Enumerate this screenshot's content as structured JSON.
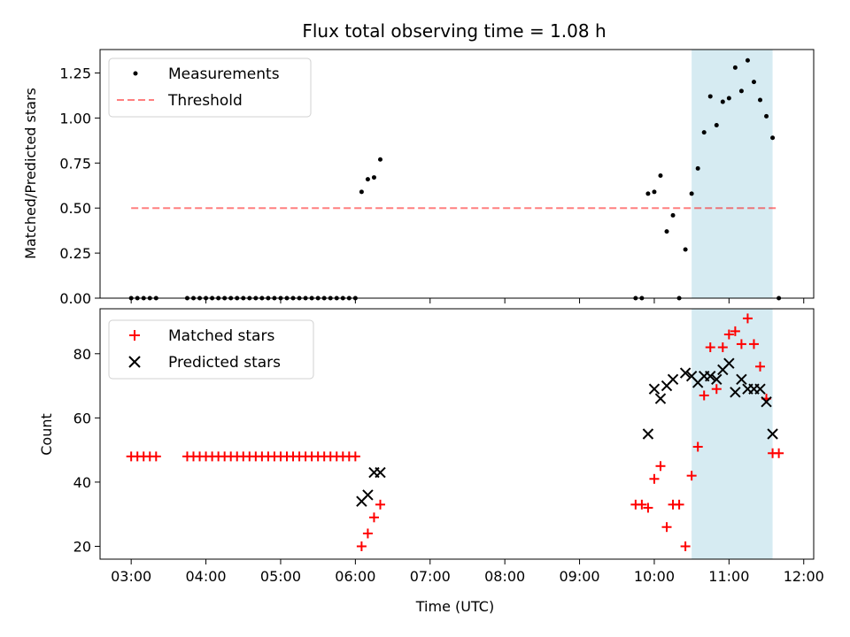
{
  "title": "Flux total observing time = 1.08 h",
  "colors": {
    "highlight": "#add8e6",
    "matched": "#ff0000",
    "predicted": "#000000",
    "threshold": "#ff0000",
    "measurements": "#000000"
  },
  "chart_data": [
    {
      "type": "scatter",
      "ylabel": "Matched/Predicted stars",
      "xlabel": "",
      "ylim": [
        0,
        1.38
      ],
      "yticks": [
        0,
        0.25,
        0.5,
        0.75,
        1.0,
        1.25
      ],
      "ytick_labels": [
        "0.00",
        "0.25",
        "0.50",
        "0.75",
        "1.00",
        "1.25"
      ],
      "legend": {
        "position": "upper-left",
        "entries": [
          "Measurements",
          "Threshold"
        ]
      },
      "highlight_span": [
        "10:30",
        "11:35"
      ],
      "threshold": {
        "name": "Threshold",
        "y": 0.5,
        "x": [
          "03:00",
          "11:40"
        ]
      },
      "series": [
        {
          "name": "Measurements",
          "points": [
            [
              "03:00",
              0
            ],
            [
              "03:05",
              0
            ],
            [
              "03:10",
              0
            ],
            [
              "03:15",
              0
            ],
            [
              "03:20",
              0
            ],
            [
              "03:45",
              0
            ],
            [
              "03:50",
              0
            ],
            [
              "03:55",
              0
            ],
            [
              "04:00",
              0
            ],
            [
              "04:05",
              0
            ],
            [
              "04:10",
              0
            ],
            [
              "04:15",
              0
            ],
            [
              "04:20",
              0
            ],
            [
              "04:25",
              0
            ],
            [
              "04:30",
              0
            ],
            [
              "04:35",
              0
            ],
            [
              "04:40",
              0
            ],
            [
              "04:45",
              0
            ],
            [
              "04:50",
              0
            ],
            [
              "04:55",
              0
            ],
            [
              "05:00",
              0
            ],
            [
              "05:05",
              0
            ],
            [
              "05:10",
              0
            ],
            [
              "05:15",
              0
            ],
            [
              "05:20",
              0
            ],
            [
              "05:25",
              0
            ],
            [
              "05:30",
              0
            ],
            [
              "05:35",
              0
            ],
            [
              "05:40",
              0
            ],
            [
              "05:45",
              0
            ],
            [
              "05:50",
              0
            ],
            [
              "05:55",
              0
            ],
            [
              "06:00",
              0
            ],
            [
              "06:05",
              0.59
            ],
            [
              "06:10",
              0.66
            ],
            [
              "06:15",
              0.67
            ],
            [
              "06:20",
              0.77
            ],
            [
              "09:45",
              0
            ],
            [
              "09:50",
              0
            ],
            [
              "09:55",
              0.58
            ],
            [
              "10:00",
              0.59
            ],
            [
              "10:05",
              0.68
            ],
            [
              "10:10",
              0.37
            ],
            [
              "10:15",
              0.46
            ],
            [
              "10:20",
              0
            ],
            [
              "10:25",
              0.27
            ],
            [
              "10:30",
              0.58
            ],
            [
              "10:35",
              0.72
            ],
            [
              "10:40",
              0.92
            ],
            [
              "10:45",
              1.12
            ],
            [
              "10:50",
              0.96
            ],
            [
              "10:55",
              1.09
            ],
            [
              "11:00",
              1.11
            ],
            [
              "11:05",
              1.28
            ],
            [
              "11:10",
              1.15
            ],
            [
              "11:15",
              1.32
            ],
            [
              "11:20",
              1.2
            ],
            [
              "11:25",
              1.1
            ],
            [
              "11:30",
              1.01
            ],
            [
              "11:35",
              0.89
            ],
            [
              "11:40",
              0
            ]
          ]
        }
      ]
    },
    {
      "type": "scatter",
      "ylabel": "Count",
      "xlabel": "Time (UTC)",
      "ylim": [
        16,
        94
      ],
      "yticks": [
        20,
        40,
        60,
        80
      ],
      "ytick_labels": [
        "20",
        "40",
        "60",
        "80"
      ],
      "xlim": [
        "02:35",
        "12:08"
      ],
      "xticks": [
        "03:00",
        "04:00",
        "05:00",
        "06:00",
        "07:00",
        "08:00",
        "09:00",
        "10:00",
        "11:00",
        "12:00"
      ],
      "legend": {
        "position": "upper-left",
        "entries": [
          "Matched stars",
          "Predicted stars"
        ]
      },
      "highlight_span": [
        "10:30",
        "11:35"
      ],
      "series": [
        {
          "name": "Matched stars",
          "marker": "plus",
          "points": [
            [
              "03:00",
              48
            ],
            [
              "03:05",
              48
            ],
            [
              "03:10",
              48
            ],
            [
              "03:15",
              48
            ],
            [
              "03:20",
              48
            ],
            [
              "03:45",
              48
            ],
            [
              "03:50",
              48
            ],
            [
              "03:55",
              48
            ],
            [
              "04:00",
              48
            ],
            [
              "04:05",
              48
            ],
            [
              "04:10",
              48
            ],
            [
              "04:15",
              48
            ],
            [
              "04:20",
              48
            ],
            [
              "04:25",
              48
            ],
            [
              "04:30",
              48
            ],
            [
              "04:35",
              48
            ],
            [
              "04:40",
              48
            ],
            [
              "04:45",
              48
            ],
            [
              "04:50",
              48
            ],
            [
              "04:55",
              48
            ],
            [
              "05:00",
              48
            ],
            [
              "05:05",
              48
            ],
            [
              "05:10",
              48
            ],
            [
              "05:15",
              48
            ],
            [
              "05:20",
              48
            ],
            [
              "05:25",
              48
            ],
            [
              "05:30",
              48
            ],
            [
              "05:35",
              48
            ],
            [
              "05:40",
              48
            ],
            [
              "05:45",
              48
            ],
            [
              "05:50",
              48
            ],
            [
              "05:55",
              48
            ],
            [
              "06:00",
              48
            ],
            [
              "06:05",
              20
            ],
            [
              "06:10",
              24
            ],
            [
              "06:15",
              29
            ],
            [
              "06:20",
              33
            ],
            [
              "09:45",
              33
            ],
            [
              "09:50",
              33
            ],
            [
              "09:55",
              32
            ],
            [
              "10:00",
              41
            ],
            [
              "10:05",
              45
            ],
            [
              "10:10",
              26
            ],
            [
              "10:15",
              33
            ],
            [
              "10:20",
              33
            ],
            [
              "10:25",
              20
            ],
            [
              "10:30",
              42
            ],
            [
              "10:35",
              51
            ],
            [
              "10:40",
              67
            ],
            [
              "10:45",
              82
            ],
            [
              "10:50",
              69
            ],
            [
              "10:55",
              82
            ],
            [
              "11:00",
              86
            ],
            [
              "11:05",
              87
            ],
            [
              "11:10",
              83
            ],
            [
              "11:15",
              91
            ],
            [
              "11:20",
              83
            ],
            [
              "11:25",
              76
            ],
            [
              "11:30",
              66
            ],
            [
              "11:35",
              49
            ],
            [
              "11:40",
              49
            ]
          ]
        },
        {
          "name": "Predicted stars",
          "marker": "x",
          "points": [
            [
              "06:05",
              34
            ],
            [
              "06:10",
              36
            ],
            [
              "06:15",
              43
            ],
            [
              "06:20",
              43
            ],
            [
              "09:55",
              55
            ],
            [
              "10:00",
              69
            ],
            [
              "10:05",
              66
            ],
            [
              "10:10",
              70
            ],
            [
              "10:15",
              72
            ],
            [
              "10:25",
              74
            ],
            [
              "10:30",
              73
            ],
            [
              "10:35",
              71
            ],
            [
              "10:40",
              73
            ],
            [
              "10:45",
              73
            ],
            [
              "10:50",
              72
            ],
            [
              "10:55",
              75
            ],
            [
              "11:00",
              77
            ],
            [
              "11:05",
              68
            ],
            [
              "11:10",
              72
            ],
            [
              "11:15",
              69
            ],
            [
              "11:20",
              69
            ],
            [
              "11:25",
              69
            ],
            [
              "11:30",
              65
            ],
            [
              "11:35",
              55
            ]
          ]
        }
      ]
    }
  ]
}
